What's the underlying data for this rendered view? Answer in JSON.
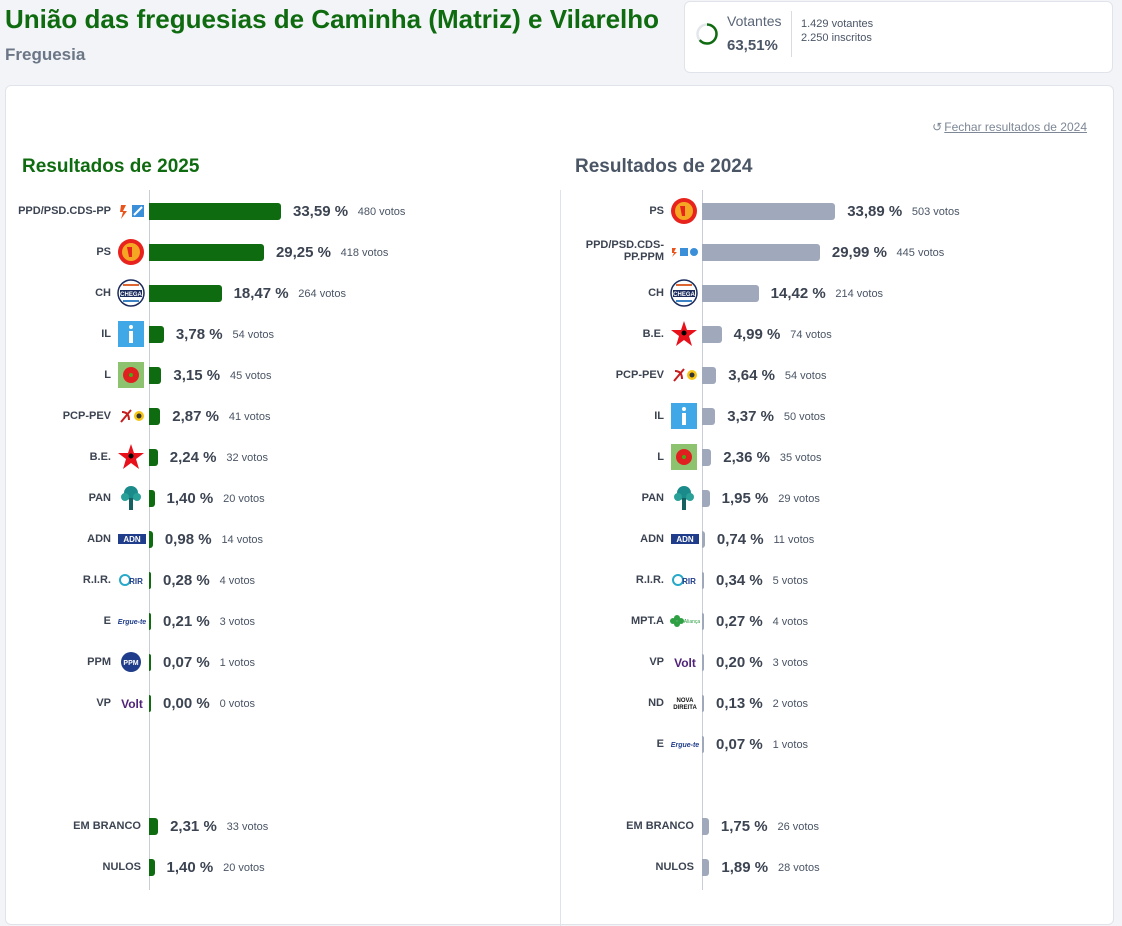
{
  "header": {
    "title": "União das freguesias de Caminha (Matriz) e Vilarelho",
    "subtitle": "Freguesia"
  },
  "turnout": {
    "label": "Votantes",
    "percent": "63,51%",
    "percent_value": 63.51,
    "voters": "1.429 votantes",
    "registered": "2.250 inscritos"
  },
  "close_link": "Fechar resultados de 2024",
  "colors": {
    "accent": "#0f6b0f",
    "bar_2025": "#0f6b0f",
    "bar_2024": "#a0a9bc"
  },
  "chart_data": [
    {
      "type": "bar",
      "title": "Resultados de 2025",
      "rows": [
        {
          "party": "PPD/PSD.CDS-PP",
          "value": 33.59,
          "pct": "33,59 %",
          "votes": "480 votos",
          "logo": "psd-cds-icon"
        },
        {
          "party": "PS",
          "value": 29.25,
          "pct": "29,25 %",
          "votes": "418 votos",
          "logo": "ps-icon"
        },
        {
          "party": "CH",
          "value": 18.47,
          "pct": "18,47 %",
          "votes": "264 votos",
          "logo": "chega-icon"
        },
        {
          "party": "IL",
          "value": 3.78,
          "pct": "3,78 %",
          "votes": "54 votos",
          "logo": "il-icon"
        },
        {
          "party": "L",
          "value": 3.15,
          "pct": "3,15 %",
          "votes": "45 votos",
          "logo": "livre-icon"
        },
        {
          "party": "PCP-PEV",
          "value": 2.87,
          "pct": "2,87 %",
          "votes": "41 votos",
          "logo": "cdu-icon"
        },
        {
          "party": "B.E.",
          "value": 2.24,
          "pct": "2,24 %",
          "votes": "32 votos",
          "logo": "be-star-icon"
        },
        {
          "party": "PAN",
          "value": 1.4,
          "pct": "1,40 %",
          "votes": "20 votos",
          "logo": "pan-icon"
        },
        {
          "party": "ADN",
          "value": 0.98,
          "pct": "0,98 %",
          "votes": "14 votos",
          "logo": "adn-icon"
        },
        {
          "party": "R.I.R.",
          "value": 0.28,
          "pct": "0,28 %",
          "votes": "4 votos",
          "logo": "rir-icon"
        },
        {
          "party": "E",
          "value": 0.21,
          "pct": "0,21 %",
          "votes": "3 votos",
          "logo": "ergue-te-icon"
        },
        {
          "party": "PPM",
          "value": 0.07,
          "pct": "0,07 %",
          "votes": "1 votos",
          "logo": "ppm-icon"
        },
        {
          "party": "VP",
          "value": 0.0,
          "pct": "0,00 %",
          "votes": "0 votos",
          "logo": "volt-icon"
        }
      ],
      "extra_rows": [
        {
          "party": "EM BRANCO",
          "value": 2.31,
          "pct": "2,31 %",
          "votes": "33 votos"
        },
        {
          "party": "NULOS",
          "value": 1.4,
          "pct": "1,40 %",
          "votes": "20 votos"
        }
      ]
    },
    {
      "type": "bar",
      "title": "Resultados de 2024",
      "rows": [
        {
          "party": "PS",
          "value": 33.89,
          "pct": "33,89 %",
          "votes": "503 votos",
          "logo": "ps-icon"
        },
        {
          "party": "PPD/PSD.CDS-PP.PPM",
          "value": 29.99,
          "pct": "29,99 %",
          "votes": "445 votos",
          "logo": "ad-icon"
        },
        {
          "party": "CH",
          "value": 14.42,
          "pct": "14,42 %",
          "votes": "214 votos",
          "logo": "chega-icon"
        },
        {
          "party": "B.E.",
          "value": 4.99,
          "pct": "4,99 %",
          "votes": "74 votos",
          "logo": "be-star-icon"
        },
        {
          "party": "PCP-PEV",
          "value": 3.64,
          "pct": "3,64 %",
          "votes": "54 votos",
          "logo": "cdu-icon"
        },
        {
          "party": "IL",
          "value": 3.37,
          "pct": "3,37 %",
          "votes": "50 votos",
          "logo": "il-icon"
        },
        {
          "party": "L",
          "value": 2.36,
          "pct": "2,36 %",
          "votes": "35 votos",
          "logo": "livre-icon"
        },
        {
          "party": "PAN",
          "value": 1.95,
          "pct": "1,95 %",
          "votes": "29 votos",
          "logo": "pan-icon"
        },
        {
          "party": "ADN",
          "value": 0.74,
          "pct": "0,74 %",
          "votes": "11 votos",
          "logo": "adn-icon"
        },
        {
          "party": "R.I.R.",
          "value": 0.34,
          "pct": "0,34 %",
          "votes": "5 votos",
          "logo": "rir-icon"
        },
        {
          "party": "MPT.A",
          "value": 0.27,
          "pct": "0,27 %",
          "votes": "4 votos",
          "logo": "mpt-icon"
        },
        {
          "party": "VP",
          "value": 0.2,
          "pct": "0,20 %",
          "votes": "3 votos",
          "logo": "volt-icon"
        },
        {
          "party": "ND",
          "value": 0.13,
          "pct": "0,13 %",
          "votes": "2 votos",
          "logo": "nova-direita-icon"
        },
        {
          "party": "E",
          "value": 0.07,
          "pct": "0,07 %",
          "votes": "1 votos",
          "logo": "ergue-te-icon"
        }
      ],
      "extra_rows": [
        {
          "party": "EM BRANCO",
          "value": 1.75,
          "pct": "1,75 %",
          "votes": "26 votos"
        },
        {
          "party": "NULOS",
          "value": 1.89,
          "pct": "1,89 %",
          "votes": "28 votos"
        }
      ]
    }
  ]
}
